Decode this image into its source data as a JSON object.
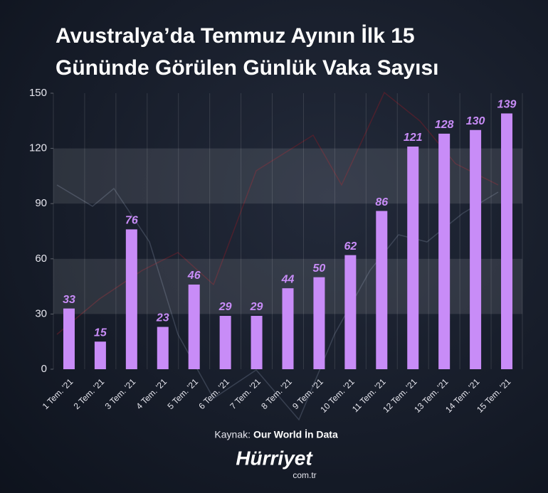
{
  "chart_data": {
    "type": "bar",
    "title": [
      "Avustralya’da Temmuz Ayının İlk 15",
      "Gününde Görülen Günlük Vaka Sayısı"
    ],
    "categories": [
      "1 Tem. '21",
      "2 Tem. '21",
      "3 Tem. '21",
      "4 Tem. '21",
      "5 Tem. '21",
      "6 Tem. '21",
      "7 Tem. '21",
      "8 Tem. '21",
      "9 Tem. '21",
      "10 Tem. '21",
      "11 Tem. '21",
      "12 Tem. '21",
      "13 Tem. '21",
      "14 Tem. '21",
      "15 Tem. '21"
    ],
    "values": [
      33,
      15,
      76,
      23,
      46,
      29,
      29,
      44,
      50,
      62,
      86,
      121,
      128,
      130,
      139
    ],
    "color": "#c88cf7",
    "ylim": [
      0,
      150
    ],
    "yticks": [
      0,
      30,
      60,
      90,
      120,
      150
    ],
    "grid": true,
    "source": {
      "label": "Kaynak:",
      "name": "Our World İn Data"
    },
    "brand": {
      "name": "Hürriyet",
      "domain": "com.tr"
    }
  }
}
